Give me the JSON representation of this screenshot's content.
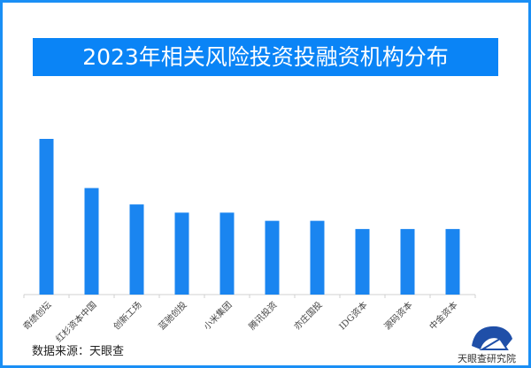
{
  "chart_data": {
    "type": "bar",
    "title": "2023年相关风险投资投融资机构分布",
    "categories": [
      "奇绩创坛",
      "红杉资本中国",
      "创新工场",
      "蓝驰创投",
      "小米集团",
      "腾讯投资",
      "亦庄国投",
      "IDG资本",
      "源码资本",
      "中金资本"
    ],
    "values": [
      19,
      13,
      11,
      10,
      10,
      9,
      9,
      8,
      8,
      8
    ],
    "ylim": [
      0,
      19
    ],
    "grid": false,
    "bar_color": "#1a85f0",
    "xlabel": "",
    "ylabel": ""
  },
  "source": "数据来源：天眼查",
  "logo_text": "天眼查研究院"
}
